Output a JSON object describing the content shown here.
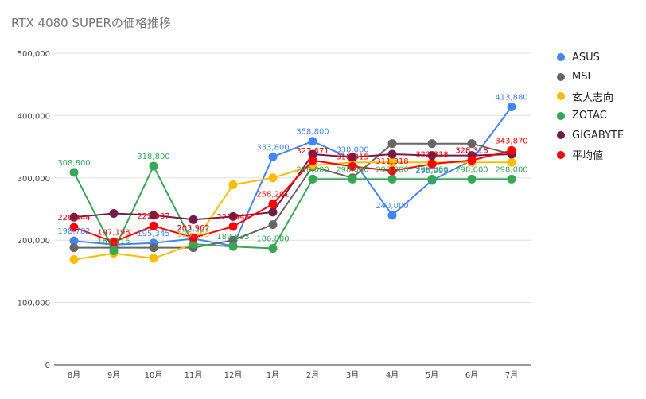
{
  "chart_data": {
    "type": "line",
    "title": "RTX 4080 SUPERの価格推移",
    "categories": [
      "8月",
      "9月",
      "10月",
      "11月",
      "12月",
      "1月",
      "2月",
      "3月",
      "4月",
      "5月",
      "6月",
      "7月"
    ],
    "y_ticks": [
      "0",
      "100,000",
      "200,000",
      "300,000",
      "400,000",
      "500,000"
    ],
    "ylim": [
      0,
      500000
    ],
    "grid": true,
    "legend_position": "right",
    "series": [
      {
        "name": "ASUS",
        "color": "#4285F4",
        "values": [
          198782,
          193000,
          195345,
          202327,
          191000,
          333800,
          358800,
          330000,
          240000,
          295999,
          328318,
          413880
        ],
        "labels": [
          "198,782",
          "",
          "195,345",
          "202,327",
          "",
          "333,800",
          "358,800",
          "330,000",
          "240,000",
          "295,999",
          "328,318",
          "413,880"
        ]
      },
      {
        "name": "MSI",
        "color": "#666666",
        "values": [
          188000,
          188000,
          188000,
          188000,
          200000,
          225000,
          318000,
          300000,
          355000,
          355000,
          355000,
          338000
        ],
        "labels": []
      },
      {
        "name": "玄人志向",
        "color": "#FBBC04",
        "values": [
          169000,
          179000,
          171000,
          193799,
          289000,
          300000,
          320000,
          325000,
          325000,
          325000,
          325000,
          325000
        ],
        "labels": [
          "",
          "",
          "",
          "193,799",
          "",
          "",
          "",
          "",
          "",
          "",
          "",
          ""
        ]
      },
      {
        "name": "ZOTAC",
        "color": "#34A853",
        "values": [
          308800,
          183115,
          318800,
          193799,
          189833,
          186800,
          298000,
          298000,
          298000,
          298000,
          298000,
          298000
        ],
        "labels": [
          "308,800",
          "183,115",
          "318,800",
          "",
          "189,833",
          "186,800",
          "298,000",
          "298,000",
          "298,000",
          "298,000",
          "298,000",
          "298,000"
        ]
      },
      {
        "name": "GIGABYTE",
        "color": "#741B47",
        "values": [
          237000,
          243000,
          240000,
          233000,
          238000,
          245000,
          338000,
          333000,
          338000,
          336000,
          336000,
          338000
        ],
        "labels": []
      },
      {
        "name": "平均値",
        "color": "#FF0000",
        "values": [
          220444,
          197198,
          222937,
          203962,
          221948,
          258201,
          327871,
          318315,
          311318,
          322318,
          328318,
          343870
        ],
        "labels": [
          "220,444",
          "197,198",
          "222,937",
          "203,962",
          "221,948",
          "258,201",
          "327,871",
          "318,315",
          "311,318",
          "322,318",
          "328,318",
          "343,870"
        ]
      }
    ]
  }
}
